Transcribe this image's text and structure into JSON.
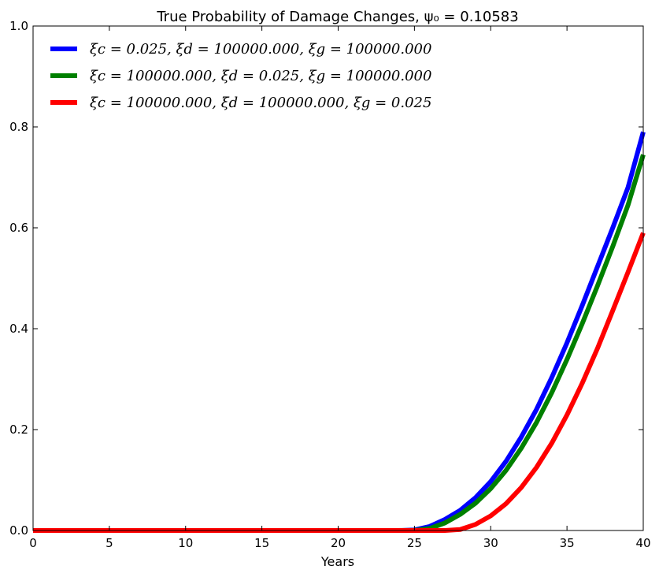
{
  "chart_data": {
    "type": "line",
    "title": "True Probability of Damage Changes, ψ₀ = 0.10583",
    "xlabel": "Years",
    "ylabel": "",
    "xlim": [
      0,
      40
    ],
    "ylim": [
      0,
      1.0
    ],
    "x_ticks": [
      "0",
      "5",
      "10",
      "15",
      "20",
      "25",
      "30",
      "35",
      "40"
    ],
    "y_ticks": [
      "0.0",
      "0.2",
      "0.4",
      "0.6",
      "0.8",
      "1.0"
    ],
    "grid": false,
    "legend_position": "top-left",
    "x": [
      0,
      5,
      10,
      15,
      20,
      24,
      25,
      26,
      27,
      28,
      29,
      30,
      31,
      32,
      33,
      34,
      35,
      36,
      37,
      38,
      39,
      40
    ],
    "series": [
      {
        "name": "ξc = 0.025, ξd = 100000.000, ξg = 100000.000",
        "color": "#0000ff",
        "values": [
          0,
          0,
          0,
          0,
          0,
          0,
          0.001,
          0.008,
          0.022,
          0.04,
          0.065,
          0.097,
          0.137,
          0.185,
          0.24,
          0.303,
          0.372,
          0.446,
          0.523,
          0.6,
          0.68,
          0.79
        ]
      },
      {
        "name": "ξc = 100000.000, ξd = 0.025, ξg = 100000.000",
        "color": "#008000",
        "values": [
          0,
          0,
          0,
          0,
          0,
          0,
          0,
          0.004,
          0.015,
          0.032,
          0.054,
          0.083,
          0.119,
          0.163,
          0.214,
          0.273,
          0.339,
          0.41,
          0.485,
          0.563,
          0.645,
          0.745
        ]
      },
      {
        "name": "ξc = 100000.000, ξd = 100000.000, ξg = 0.025",
        "color": "#ff0000",
        "values": [
          0,
          0,
          0,
          0,
          0,
          0,
          0,
          0,
          0,
          0.002,
          0.012,
          0.029,
          0.053,
          0.085,
          0.125,
          0.173,
          0.229,
          0.292,
          0.361,
          0.436,
          0.512,
          0.59
        ]
      }
    ]
  }
}
